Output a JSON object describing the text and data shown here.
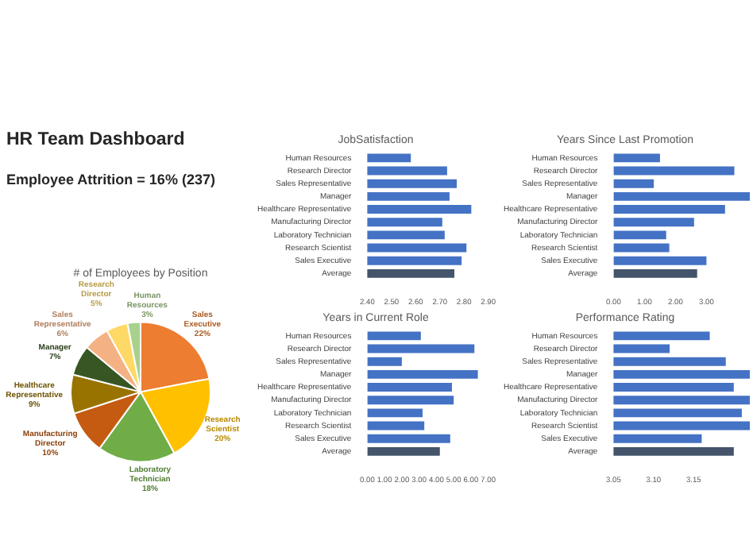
{
  "chart_data": [
    {
      "type": "other",
      "title": "HR Team Dashboard",
      "annotations": [
        "Employee Attrition = 16% (237)"
      ]
    },
    {
      "type": "pie",
      "title": "# of Employees by Position",
      "categories": [
        "Sales Executive",
        "Research Scientist",
        "Laboratory Technician",
        "Manufacturing Director",
        "Healthcare Representative",
        "Manager",
        "Sales Representative",
        "Research Director",
        "Human Resources"
      ],
      "values": [
        22,
        20,
        18,
        10,
        9,
        7,
        6,
        5,
        3
      ],
      "value_labels": [
        "22%",
        "20%",
        "18%",
        "10%",
        "9%",
        "7%",
        "6%",
        "5%",
        "3%"
      ],
      "colors": [
        "#ed7d31",
        "#ffc000",
        "#70ad47",
        "#c55a11",
        "#997300",
        "#375623",
        "#f4b183",
        "#ffd966",
        "#a9d18e"
      ]
    },
    {
      "type": "bar",
      "orientation": "horizontal",
      "title": "JobSatisfaction",
      "categories": [
        "Human Resources",
        "Research Director",
        "Sales Representative",
        "Manager",
        "Healthcare Representative",
        "Manufacturing Director",
        "Laboratory Technician",
        "Research Scientist",
        "Sales Executive",
        "Average"
      ],
      "values": [
        2.58,
        2.73,
        2.77,
        2.74,
        2.83,
        2.71,
        2.72,
        2.81,
        2.79,
        2.76
      ],
      "colors": [
        "#4472c4",
        "#4472c4",
        "#4472c4",
        "#4472c4",
        "#4472c4",
        "#4472c4",
        "#4472c4",
        "#4472c4",
        "#4472c4",
        "#44546a"
      ],
      "xlim": [
        2.4,
        2.9
      ],
      "xticks": [
        {
          "value": 2.4,
          "label": "2.40"
        },
        {
          "value": 2.5,
          "label": "2.50"
        },
        {
          "value": 2.6,
          "label": "2.60"
        },
        {
          "value": 2.7,
          "label": "2.70"
        },
        {
          "value": 2.8,
          "label": "2.80"
        },
        {
          "value": 2.9,
          "label": "2.90"
        }
      ]
    },
    {
      "type": "bar",
      "orientation": "horizontal",
      "title": "Years Since Last Promotion",
      "categories": [
        "Human Resources",
        "Research Director",
        "Sales Representative",
        "Manager",
        "Healthcare Representative",
        "Manufacturing Director",
        "Laboratory Technician",
        "Research Scientist",
        "Sales Executive",
        "Average"
      ],
      "values": [
        1.5,
        3.9,
        1.3,
        4.4,
        3.6,
        2.6,
        1.7,
        1.8,
        3.0,
        2.7
      ],
      "colors": [
        "#4472c4",
        "#4472c4",
        "#4472c4",
        "#4472c4",
        "#4472c4",
        "#4472c4",
        "#4472c4",
        "#4472c4",
        "#4472c4",
        "#44546a"
      ],
      "xlim": [
        0,
        4.4
      ],
      "xticks": [
        {
          "value": 0,
          "label": "0.00"
        },
        {
          "value": 1,
          "label": "1.00"
        },
        {
          "value": 2,
          "label": "2.00"
        },
        {
          "value": 3,
          "label": "3.00"
        }
      ]
    },
    {
      "type": "bar",
      "orientation": "horizontal",
      "title": "Years in Current Role",
      "categories": [
        "Human Resources",
        "Research Director",
        "Sales Representative",
        "Manager",
        "Healthcare Representative",
        "Manufacturing Director",
        "Laboratory Technician",
        "Research Scientist",
        "Sales Executive",
        "Average"
      ],
      "values": [
        3.1,
        6.2,
        2.0,
        6.4,
        4.9,
        5.0,
        3.2,
        3.3,
        4.8,
        4.2
      ],
      "colors": [
        "#4472c4",
        "#4472c4",
        "#4472c4",
        "#4472c4",
        "#4472c4",
        "#4472c4",
        "#4472c4",
        "#4472c4",
        "#4472c4",
        "#44546a"
      ],
      "xlim": [
        0,
        7
      ],
      "xticks": [
        {
          "value": 0,
          "label": "0.00"
        },
        {
          "value": 1,
          "label": "1.00"
        },
        {
          "value": 2,
          "label": "2.00"
        },
        {
          "value": 3,
          "label": "3.00"
        },
        {
          "value": 4,
          "label": "4.00"
        },
        {
          "value": 5,
          "label": "5.00"
        },
        {
          "value": 6,
          "label": "6.00"
        },
        {
          "value": 7,
          "label": "7.00"
        }
      ]
    },
    {
      "type": "bar",
      "orientation": "horizontal",
      "title": "Performance Rating",
      "categories": [
        "Human Resources",
        "Research Director",
        "Sales Representative",
        "Manager",
        "Healthcare Representative",
        "Manufacturing Director",
        "Laboratory Technician",
        "Research Scientist",
        "Sales Executive",
        "Average"
      ],
      "values": [
        3.17,
        3.12,
        3.19,
        3.22,
        3.2,
        3.22,
        3.21,
        3.22,
        3.16,
        3.2
      ],
      "colors": [
        "#4472c4",
        "#4472c4",
        "#4472c4",
        "#4472c4",
        "#4472c4",
        "#4472c4",
        "#4472c4",
        "#4472c4",
        "#4472c4",
        "#44546a"
      ],
      "xlim": [
        3.05,
        3.22
      ],
      "xticks": [
        {
          "value": 3.05,
          "label": "3.05"
        },
        {
          "value": 3.1,
          "label": "3.10"
        },
        {
          "value": 3.15,
          "label": "3.15"
        }
      ]
    }
  ]
}
